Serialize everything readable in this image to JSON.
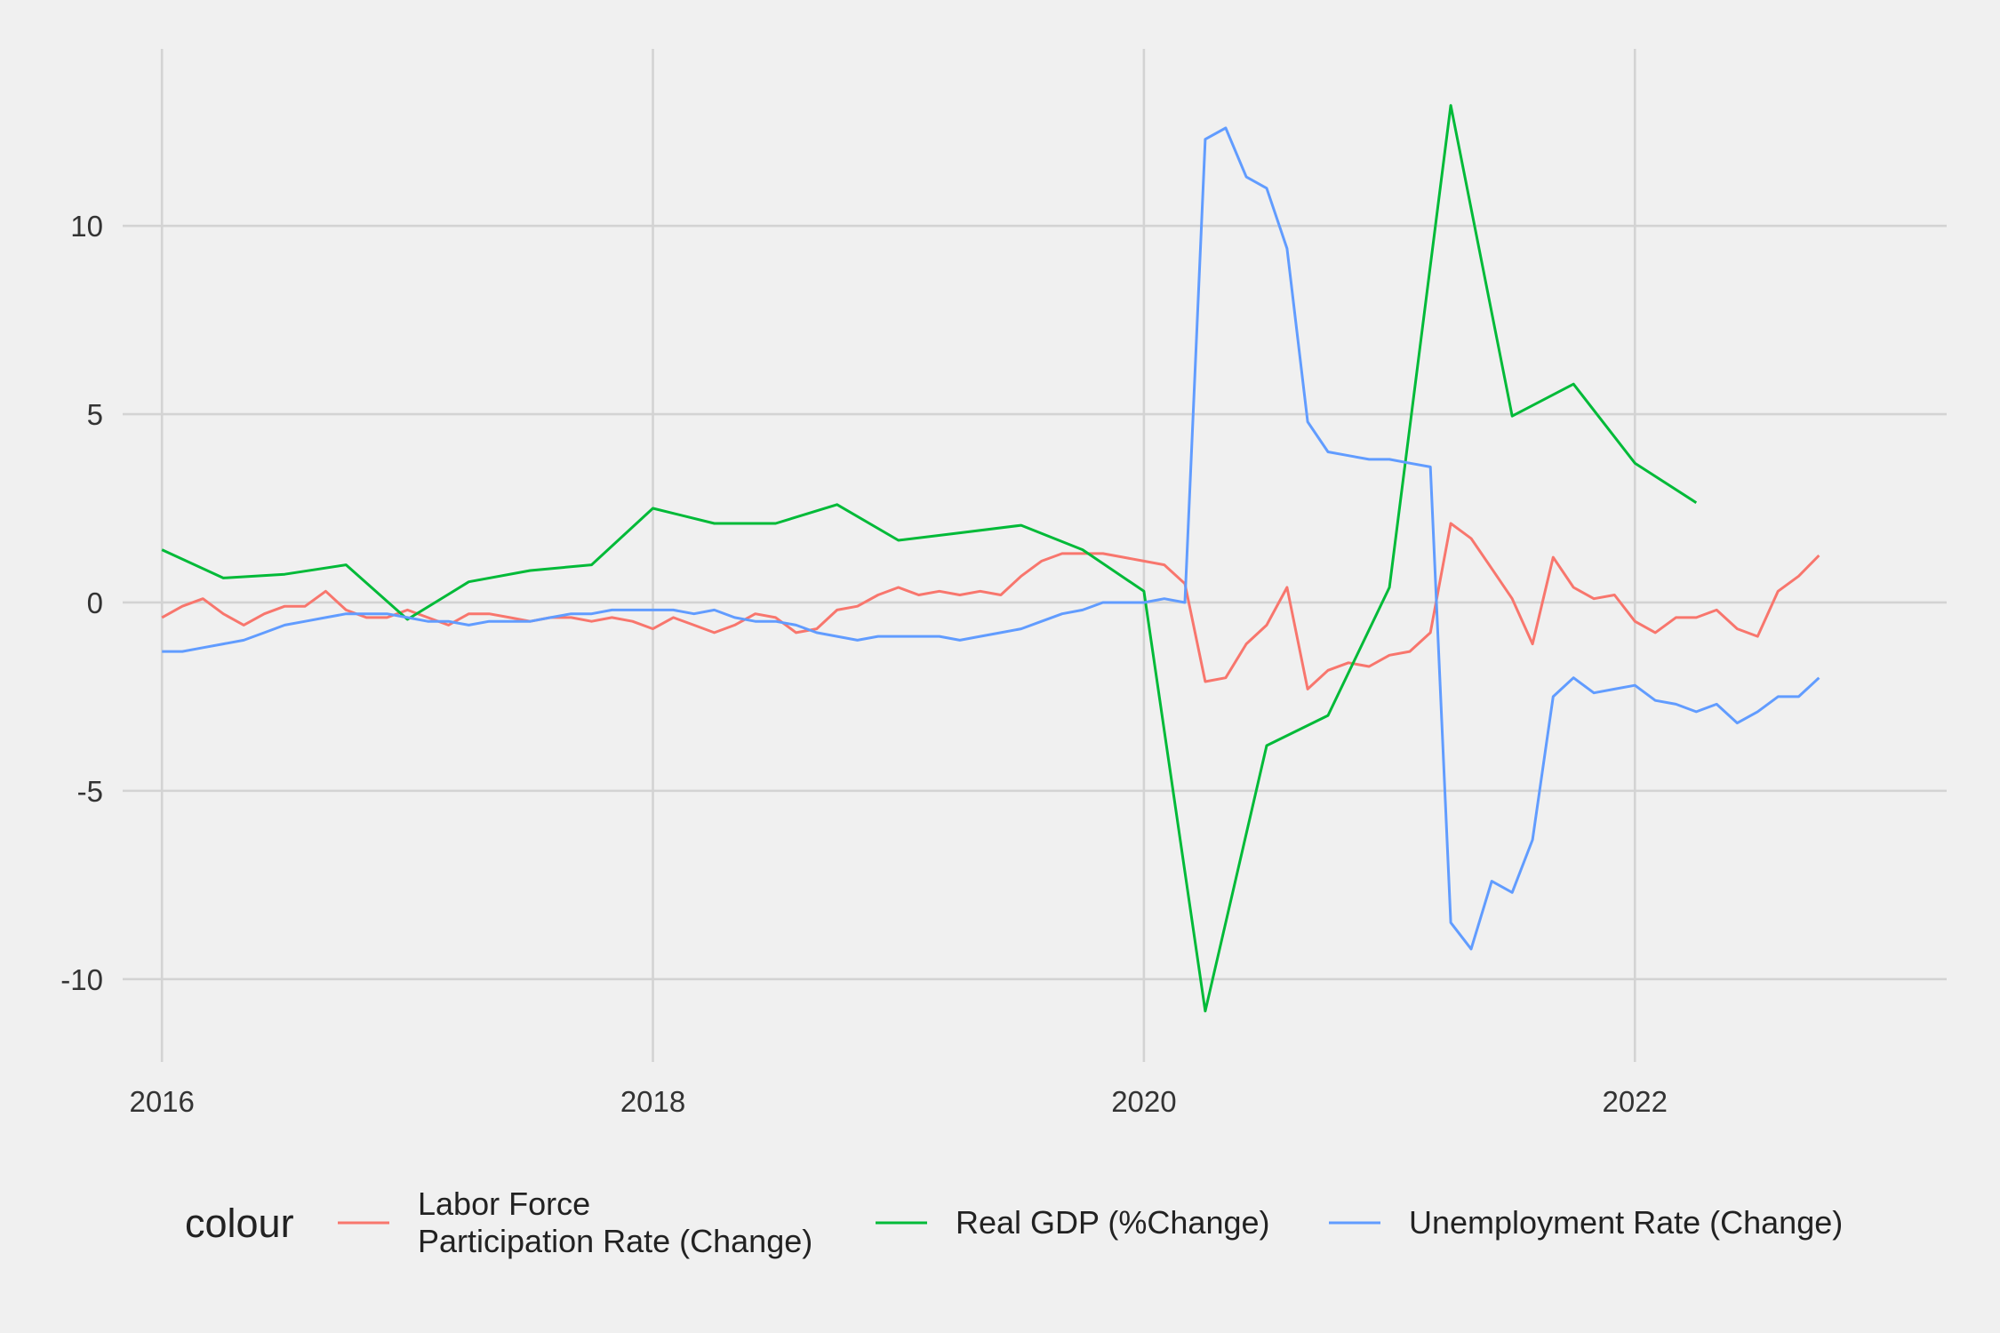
{
  "chart_data": {
    "type": "line",
    "title": "",
    "xlabel": "",
    "ylabel": "",
    "xlim": [
      2015.84,
      2023.27
    ],
    "ylim": [
      -12.2,
      14.7
    ],
    "x_ticks": [
      2016,
      2018,
      2020,
      2022
    ],
    "x_tick_labels": [
      "2016",
      "2018",
      "2020",
      "2022"
    ],
    "y_ticks": [
      -10,
      -5,
      0,
      5,
      10
    ],
    "y_tick_labels": [
      "-10",
      "-5",
      "0",
      "5",
      "10"
    ],
    "grid": true,
    "legend": {
      "title": "colour",
      "position": "bottom"
    },
    "series": [
      {
        "name": "Labor Force\nParticipation Rate (Change)",
        "color": "#F8766D",
        "x": [
          2016.0,
          2016.083,
          2016.167,
          2016.25,
          2016.333,
          2016.417,
          2016.5,
          2016.583,
          2016.667,
          2016.75,
          2016.833,
          2016.917,
          2017.0,
          2017.083,
          2017.167,
          2017.25,
          2017.333,
          2017.417,
          2017.5,
          2017.583,
          2017.667,
          2017.75,
          2017.833,
          2017.917,
          2018.0,
          2018.083,
          2018.167,
          2018.25,
          2018.333,
          2018.417,
          2018.5,
          2018.583,
          2018.667,
          2018.75,
          2018.833,
          2018.917,
          2019.0,
          2019.083,
          2019.167,
          2019.25,
          2019.333,
          2019.417,
          2019.5,
          2019.583,
          2019.667,
          2019.75,
          2019.833,
          2019.917,
          2020.0,
          2020.083,
          2020.167,
          2020.25,
          2020.333,
          2020.417,
          2020.5,
          2020.583,
          2020.667,
          2020.75,
          2020.833,
          2020.917,
          2021.0,
          2021.083,
          2021.167,
          2021.25,
          2021.333,
          2021.417,
          2021.5,
          2021.583,
          2021.667,
          2021.75,
          2021.833,
          2021.917,
          2022.0,
          2022.083,
          2022.167,
          2022.25,
          2022.333,
          2022.417,
          2022.5,
          2022.583,
          2022.667,
          2022.75
        ],
        "values": [
          -0.4,
          -0.1,
          0.1,
          -0.3,
          -0.6,
          -0.3,
          -0.1,
          -0.1,
          0.3,
          -0.2,
          -0.4,
          -0.4,
          -0.2,
          -0.4,
          -0.6,
          -0.3,
          -0.3,
          -0.4,
          -0.5,
          -0.4,
          -0.4,
          -0.5,
          -0.4,
          -0.5,
          -0.7,
          -0.4,
          -0.6,
          -0.8,
          -0.6,
          -0.3,
          -0.4,
          -0.8,
          -0.7,
          -0.2,
          -0.1,
          0.2,
          0.4,
          0.2,
          0.3,
          0.2,
          0.3,
          0.2,
          0.7,
          1.1,
          1.3,
          1.3,
          1.3,
          1.2,
          1.1,
          1.0,
          0.5,
          -2.1,
          -2.0,
          -1.1,
          -0.6,
          0.4,
          -2.3,
          -1.8,
          -1.6,
          -1.7,
          -1.4,
          -1.3,
          -0.8,
          2.1,
          1.7,
          0.9,
          0.1,
          -1.1,
          1.2,
          0.4,
          0.1,
          0.2,
          -0.5,
          -0.8,
          -0.4,
          -0.4,
          -0.2,
          -0.7,
          -0.9,
          0.3,
          0.7,
          1.25
        ]
      },
      {
        "name": "Real GDP (%Change)",
        "color": "#00BA38",
        "x": [
          2016.0,
          2016.25,
          2016.5,
          2016.75,
          2017.0,
          2017.25,
          2017.5,
          2017.75,
          2018.0,
          2018.25,
          2018.5,
          2018.75,
          2019.0,
          2019.25,
          2019.5,
          2019.75,
          2020.0,
          2020.25,
          2020.5,
          2020.75,
          2021.0,
          2021.25,
          2021.5,
          2021.75,
          2022.0,
          2022.25
        ],
        "values": [
          1.4,
          0.65,
          0.75,
          1.0,
          -0.45,
          0.55,
          0.85,
          1.0,
          2.5,
          2.1,
          2.1,
          2.6,
          1.65,
          1.85,
          2.05,
          1.4,
          0.3,
          -10.85,
          -3.8,
          -3.0,
          0.4,
          13.2,
          4.95,
          5.8,
          3.7,
          2.65
        ]
      },
      {
        "name": "Unemployment Rate (Change)",
        "color": "#619CFF",
        "x": [
          2016.0,
          2016.083,
          2016.167,
          2016.25,
          2016.333,
          2016.417,
          2016.5,
          2016.583,
          2016.667,
          2016.75,
          2016.833,
          2016.917,
          2017.0,
          2017.083,
          2017.167,
          2017.25,
          2017.333,
          2017.417,
          2017.5,
          2017.583,
          2017.667,
          2017.75,
          2017.833,
          2017.917,
          2018.0,
          2018.083,
          2018.167,
          2018.25,
          2018.333,
          2018.417,
          2018.5,
          2018.583,
          2018.667,
          2018.75,
          2018.833,
          2018.917,
          2019.0,
          2019.083,
          2019.167,
          2019.25,
          2019.333,
          2019.417,
          2019.5,
          2019.583,
          2019.667,
          2019.75,
          2019.833,
          2019.917,
          2020.0,
          2020.083,
          2020.167,
          2020.25,
          2020.333,
          2020.417,
          2020.5,
          2020.583,
          2020.667,
          2020.75,
          2020.833,
          2020.917,
          2021.0,
          2021.083,
          2021.167,
          2021.25,
          2021.333,
          2021.417,
          2021.5,
          2021.583,
          2021.667,
          2021.75,
          2021.833,
          2021.917,
          2022.0,
          2022.083,
          2022.167,
          2022.25,
          2022.333,
          2022.417,
          2022.5,
          2022.583,
          2022.667,
          2022.75
        ],
        "values": [
          -1.3,
          -1.3,
          -1.2,
          -1.1,
          -1.0,
          -0.8,
          -0.6,
          -0.5,
          -0.4,
          -0.3,
          -0.3,
          -0.3,
          -0.4,
          -0.5,
          -0.5,
          -0.6,
          -0.5,
          -0.5,
          -0.5,
          -0.4,
          -0.3,
          -0.3,
          -0.2,
          -0.2,
          -0.2,
          -0.2,
          -0.3,
          -0.2,
          -0.4,
          -0.5,
          -0.5,
          -0.6,
          -0.8,
          -0.9,
          -1.0,
          -0.9,
          -0.9,
          -0.9,
          -0.9,
          -1.0,
          -0.9,
          -0.8,
          -0.7,
          -0.5,
          -0.3,
          -0.2,
          0.0,
          0.0,
          0.0,
          0.1,
          0.0,
          12.3,
          12.6,
          11.3,
          11.0,
          9.4,
          4.8,
          4.0,
          3.9,
          3.8,
          3.8,
          3.7,
          3.6,
          -8.5,
          -9.2,
          -7.4,
          -7.7,
          -6.3,
          -2.5,
          -2.0,
          -2.4,
          -2.3,
          -2.2,
          -2.6,
          -2.7,
          -2.9,
          -2.7,
          -3.2,
          -2.9,
          -2.5,
          -2.5,
          -2.0
        ]
      }
    ]
  }
}
